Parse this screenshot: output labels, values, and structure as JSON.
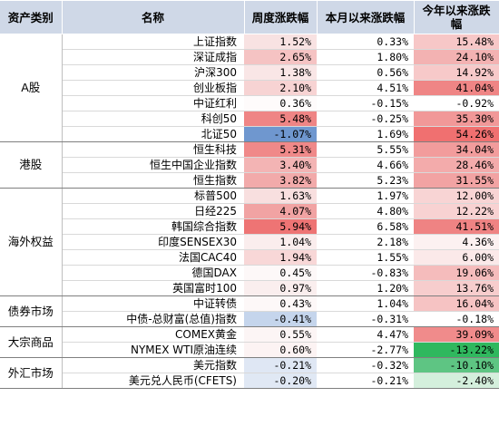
{
  "headers": [
    "资产类别",
    "名称",
    "周度涨跌幅",
    "本月以来涨跌幅",
    "今年以来涨跌幅"
  ],
  "groups": [
    {
      "category": "A股",
      "rows": [
        {
          "name": "上证指数",
          "week": "1.52%",
          "month": "0.33%",
          "ytd": "15.48%",
          "c": [
            "#f8e2e2",
            "#ffffff",
            "#f7c7c7"
          ]
        },
        {
          "name": "深证成指",
          "week": "2.65%",
          "month": "1.80%",
          "ytd": "24.10%",
          "c": [
            "#f5c3c3",
            "#ffffff",
            "#f3b2b2"
          ]
        },
        {
          "name": "沪深300",
          "week": "1.38%",
          "month": "0.56%",
          "ytd": "14.92%",
          "c": [
            "#f9e6e6",
            "#ffffff",
            "#f7c9c9"
          ]
        },
        {
          "name": "创业板指",
          "week": "2.10%",
          "month": "4.51%",
          "ytd": "41.04%",
          "c": [
            "#f7d3d3",
            "#ffffff",
            "#ef8585"
          ]
        },
        {
          "name": "中证红利",
          "week": "0.36%",
          "month": "-0.15%",
          "ytd": "-0.92%",
          "c": [
            "#fefbfb",
            "#ffffff",
            "#ffffff"
          ]
        },
        {
          "name": "科创50",
          "week": "5.48%",
          "month": "-0.25%",
          "ytd": "35.30%",
          "c": [
            "#ef8585",
            "#ffffff",
            "#f19898"
          ]
        },
        {
          "name": "北证50",
          "week": "-1.07%",
          "month": "1.69%",
          "ytd": "54.26%",
          "c": [
            "#6f97cf",
            "#ffffff",
            "#f07070"
          ]
        }
      ]
    },
    {
      "category": "港股",
      "rows": [
        {
          "name": "恒生科技",
          "week": "5.31%",
          "month": "5.55%",
          "ytd": "34.04%",
          "c": [
            "#f08989",
            "#ffffff",
            "#f29c9c"
          ]
        },
        {
          "name": "恒生中国企业指数",
          "week": "3.40%",
          "month": "4.66%",
          "ytd": "28.46%",
          "c": [
            "#f3b4b4",
            "#ffffff",
            "#f3abab"
          ]
        },
        {
          "name": "恒生指数",
          "week": "3.82%",
          "month": "5.23%",
          "ytd": "31.55%",
          "c": [
            "#f2aaaa",
            "#ffffff",
            "#f2a3a3"
          ]
        }
      ]
    },
    {
      "category": "海外权益",
      "rows": [
        {
          "name": "标普500",
          "week": "1.63%",
          "month": "1.97%",
          "ytd": "12.00%",
          "c": [
            "#f8dfdf",
            "#ffffff",
            "#f8d4d4"
          ]
        },
        {
          "name": "日经225",
          "week": "4.07%",
          "month": "4.80%",
          "ytd": "12.22%",
          "c": [
            "#f1a3a3",
            "#ffffff",
            "#f8d2d2"
          ]
        },
        {
          "name": "韩国综合指数",
          "week": "5.94%",
          "month": "6.58%",
          "ytd": "41.51%",
          "c": [
            "#ee7474",
            "#ffffff",
            "#ef8383"
          ]
        },
        {
          "name": "印度SENSEX30",
          "week": "1.04%",
          "month": "2.18%",
          "ytd": "4.36%",
          "c": [
            "#faeded",
            "#ffffff",
            "#fcf1f1"
          ]
        },
        {
          "name": "法国CAC40",
          "week": "1.94%",
          "month": "1.55%",
          "ytd": "6.00%",
          "c": [
            "#f8d7d7",
            "#ffffff",
            "#fbe9e9"
          ]
        },
        {
          "name": "德国DAX",
          "week": "0.45%",
          "month": "-0.83%",
          "ytd": "19.06%",
          "c": [
            "#fdf8f8",
            "#ffffff",
            "#f5bcbc"
          ]
        },
        {
          "name": "英国富时100",
          "week": "0.97%",
          "month": "1.20%",
          "ytd": "13.76%",
          "c": [
            "#faeeee",
            "#ffffff",
            "#f7cdcd"
          ]
        }
      ]
    },
    {
      "category": "债券市场",
      "rows": [
        {
          "name": "中证转债",
          "week": "0.43%",
          "month": "1.04%",
          "ytd": "16.04%",
          "c": [
            "#fdf8f8",
            "#ffffff",
            "#f6c3c3"
          ]
        },
        {
          "name": "中债-总财富(总值)指数",
          "week": "-0.41%",
          "month": "-0.31%",
          "ytd": "-0.18%",
          "c": [
            "#c5d5ec",
            "#ffffff",
            "#ffffff"
          ]
        }
      ]
    },
    {
      "category": "大宗商品",
      "rows": [
        {
          "name": "COMEX黄金",
          "week": "0.55%",
          "month": "4.47%",
          "ytd": "39.09%",
          "c": [
            "#fcf5f5",
            "#ffffff",
            "#f08b8b"
          ]
        },
        {
          "name": "NYMEX WTI原油连续",
          "week": "0.60%",
          "month": "-2.77%",
          "ytd": "-13.22%",
          "c": [
            "#fcf3f3",
            "#ffffff",
            "#2fb85e"
          ]
        }
      ]
    },
    {
      "category": "外汇市场",
      "rows": [
        {
          "name": "美元指数",
          "week": "-0.21%",
          "month": "-0.32%",
          "ytd": "-10.10%",
          "c": [
            "#dfe7f4",
            "#ffffff",
            "#5ec583"
          ]
        },
        {
          "name": "美元兑人民币(CFETS)",
          "week": "-0.20%",
          "month": "-0.21%",
          "ytd": "-2.40%",
          "c": [
            "#e0e8f4",
            "#ffffff",
            "#d4efdc"
          ]
        }
      ]
    }
  ]
}
